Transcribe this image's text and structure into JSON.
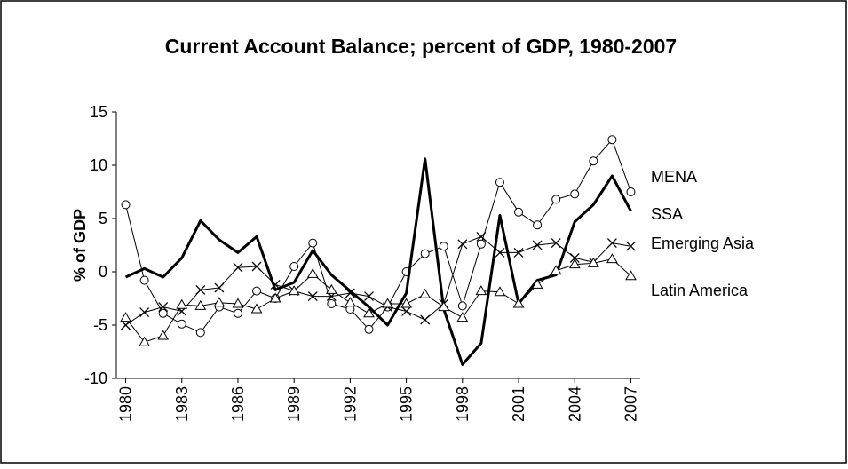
{
  "chart_data": {
    "type": "line",
    "title": "Current Account Balance; percent of GDP, 1980-2007",
    "y_label": "% of GDP",
    "x": [
      1980,
      1981,
      1982,
      1983,
      1984,
      1985,
      1986,
      1987,
      1988,
      1989,
      1990,
      1991,
      1992,
      1993,
      1994,
      1995,
      1996,
      1997,
      1998,
      1999,
      2000,
      2001,
      2002,
      2003,
      2004,
      2005,
      2006,
      2007
    ],
    "xlim": [
      1979.5,
      2007.5
    ],
    "xticks": [
      1980,
      1983,
      1986,
      1989,
      1992,
      1995,
      1998,
      2001,
      2004,
      2007
    ],
    "ylim": [
      -10,
      15
    ],
    "yticks": [
      -10,
      -5,
      0,
      5,
      10,
      15
    ],
    "grid": false,
    "series": [
      {
        "name": "MENA",
        "color": "#000000",
        "marker": "circle",
        "width": 1,
        "values": [
          6.3,
          -0.8,
          -3.9,
          -4.9,
          -5.7,
          -3.3,
          -3.9,
          -1.8,
          -2.5,
          0.5,
          2.7,
          -3.0,
          -3.5,
          -5.4,
          -3.3,
          0.0,
          1.7,
          2.4,
          -3.2,
          2.6,
          8.4,
          5.6,
          4.4,
          6.8,
          7.3,
          10.4,
          12.4,
          7.5
        ]
      },
      {
        "name": "SSA",
        "color": "#000000",
        "marker": "none",
        "width": 3,
        "values": [
          -0.5,
          0.3,
          -0.5,
          1.3,
          4.8,
          3.0,
          1.8,
          3.3,
          -1.7,
          -1.0,
          2.0,
          -0.3,
          -1.8,
          -3.3,
          -5.0,
          -2.0,
          10.6,
          -3.5,
          -8.7,
          -6.7,
          5.3,
          -3.0,
          -0.8,
          -0.3,
          4.7,
          6.3,
          9.0,
          5.7
        ]
      },
      {
        "name": "Emerging Asia",
        "color": "#000000",
        "marker": "cross",
        "width": 1,
        "values": [
          -5.0,
          -3.8,
          -3.3,
          -3.7,
          -1.7,
          -1.5,
          0.4,
          0.5,
          -1.2,
          -1.8,
          -2.3,
          -2.3,
          -2.0,
          -2.3,
          -3.3,
          -3.7,
          -4.5,
          -3.0,
          2.6,
          3.3,
          1.8,
          1.8,
          2.5,
          2.7,
          1.3,
          0.9,
          2.7,
          2.4
        ]
      },
      {
        "name": "Latin America",
        "color": "#000000",
        "marker": "triangle",
        "width": 1,
        "values": [
          -4.3,
          -6.6,
          -6.0,
          -3.1,
          -3.2,
          -2.9,
          -3.0,
          -3.5,
          -2.5,
          -1.8,
          -0.2,
          -1.7,
          -2.9,
          -3.9,
          -3.0,
          -3.0,
          -2.1,
          -3.3,
          -4.3,
          -1.8,
          -1.9,
          -3.0,
          -1.2,
          0.1,
          0.7,
          0.8,
          1.2,
          -0.4
        ]
      }
    ]
  }
}
